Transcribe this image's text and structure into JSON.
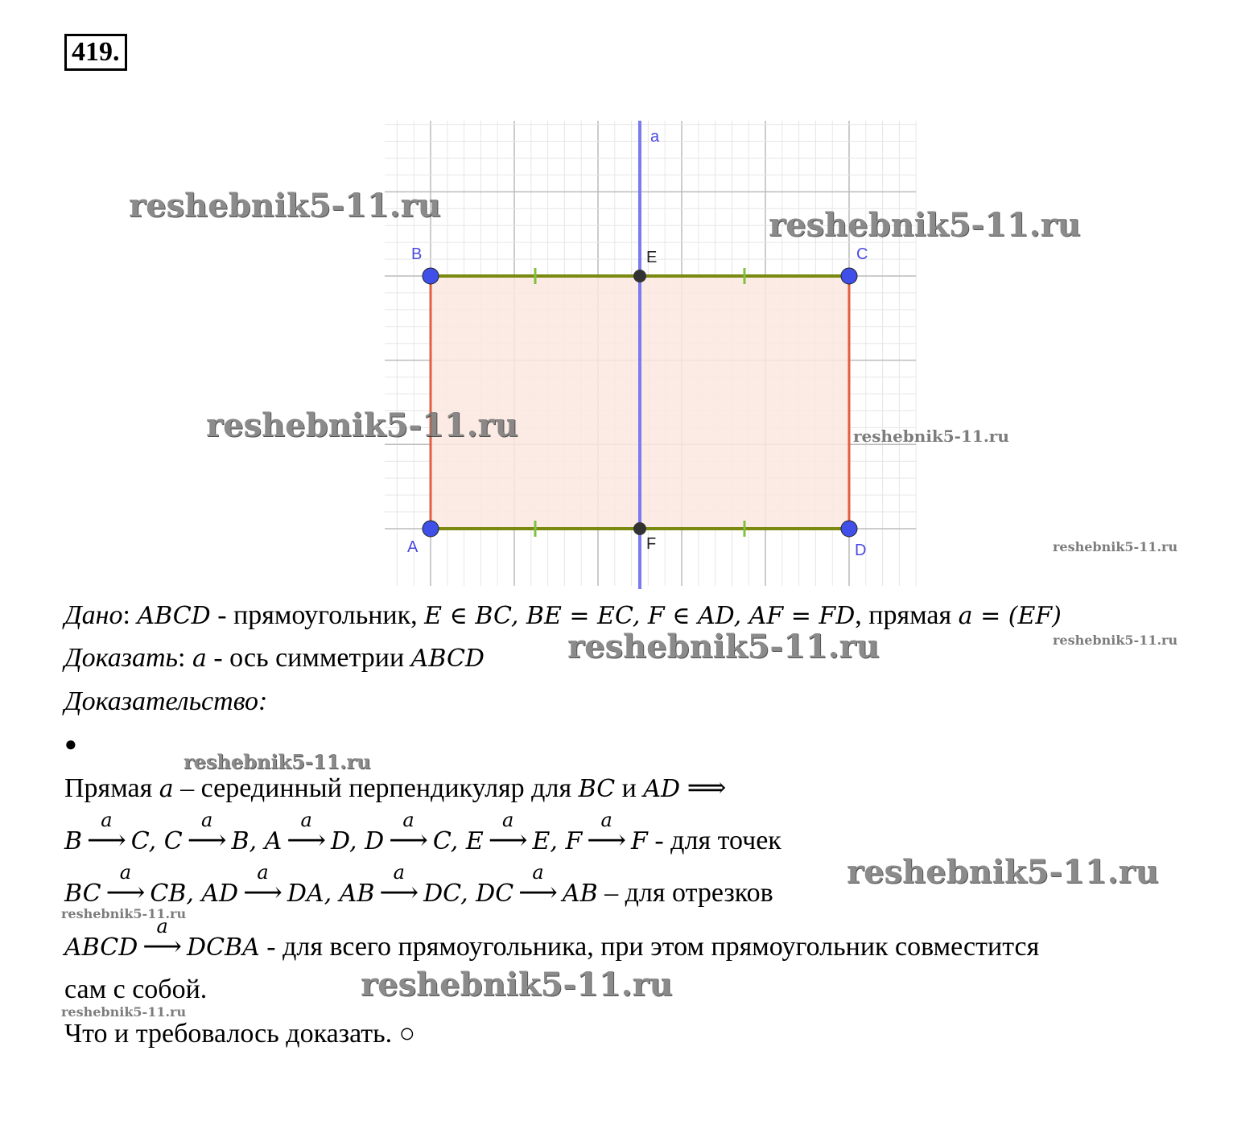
{
  "problem_number": "419.",
  "figure": {
    "line_label": "a",
    "points": {
      "A": "A",
      "B": "B",
      "C": "C",
      "D": "D",
      "E": "E",
      "F": "F"
    },
    "colors": {
      "vertex": "#3f4fe8",
      "midpoint": "#333333",
      "axis": "#7b7bf0",
      "horizontal_sides": "#7a8a10",
      "vertical_sides": "#e06040",
      "fill": "#fbe6df",
      "ticks": "#80c040"
    }
  },
  "given": {
    "label": "Дано",
    "text1": " - прямоугольник, ",
    "m1": "ABCD",
    "m2": "E ∈ BC, BE = EC, F ∈ AD, AF = FD",
    "text2": ", прямая ",
    "m3": "a = (EF)"
  },
  "prove": {
    "label": "Доказать",
    "m1": "a",
    "text": " - ось симметрии ",
    "m2": "ABCD"
  },
  "proof_label": "Доказательство",
  "bullet": "●",
  "line1": {
    "t1": "Прямая ",
    "m": "a",
    "t2": " – серединный перпендикуляр для ",
    "m2": "BC",
    "t3": " и ",
    "m3": "AD",
    "m4": " ⟹"
  },
  "points_map": {
    "items": [
      "B",
      "C, C",
      "B, A",
      "D, D",
      "C, E",
      "E, F",
      "F"
    ],
    "suffix": " - для точек",
    "arrow_label": "a",
    "arrow": "⟶"
  },
  "segments_map": {
    "items": [
      "BC",
      "CB, AD",
      "DA, AB",
      "DC, DC",
      "AB"
    ],
    "suffix": " – для отрезков"
  },
  "figure_map": {
    "items": [
      "ABCD",
      "DCBA"
    ],
    "suffix": " - для всего прямоугольника, при этом прямоугольник совместится"
  },
  "line_cont": "сам с собой.",
  "conclusion": "Что и требовалось доказать. ○",
  "watermark": "reshebnik5-11.ru"
}
